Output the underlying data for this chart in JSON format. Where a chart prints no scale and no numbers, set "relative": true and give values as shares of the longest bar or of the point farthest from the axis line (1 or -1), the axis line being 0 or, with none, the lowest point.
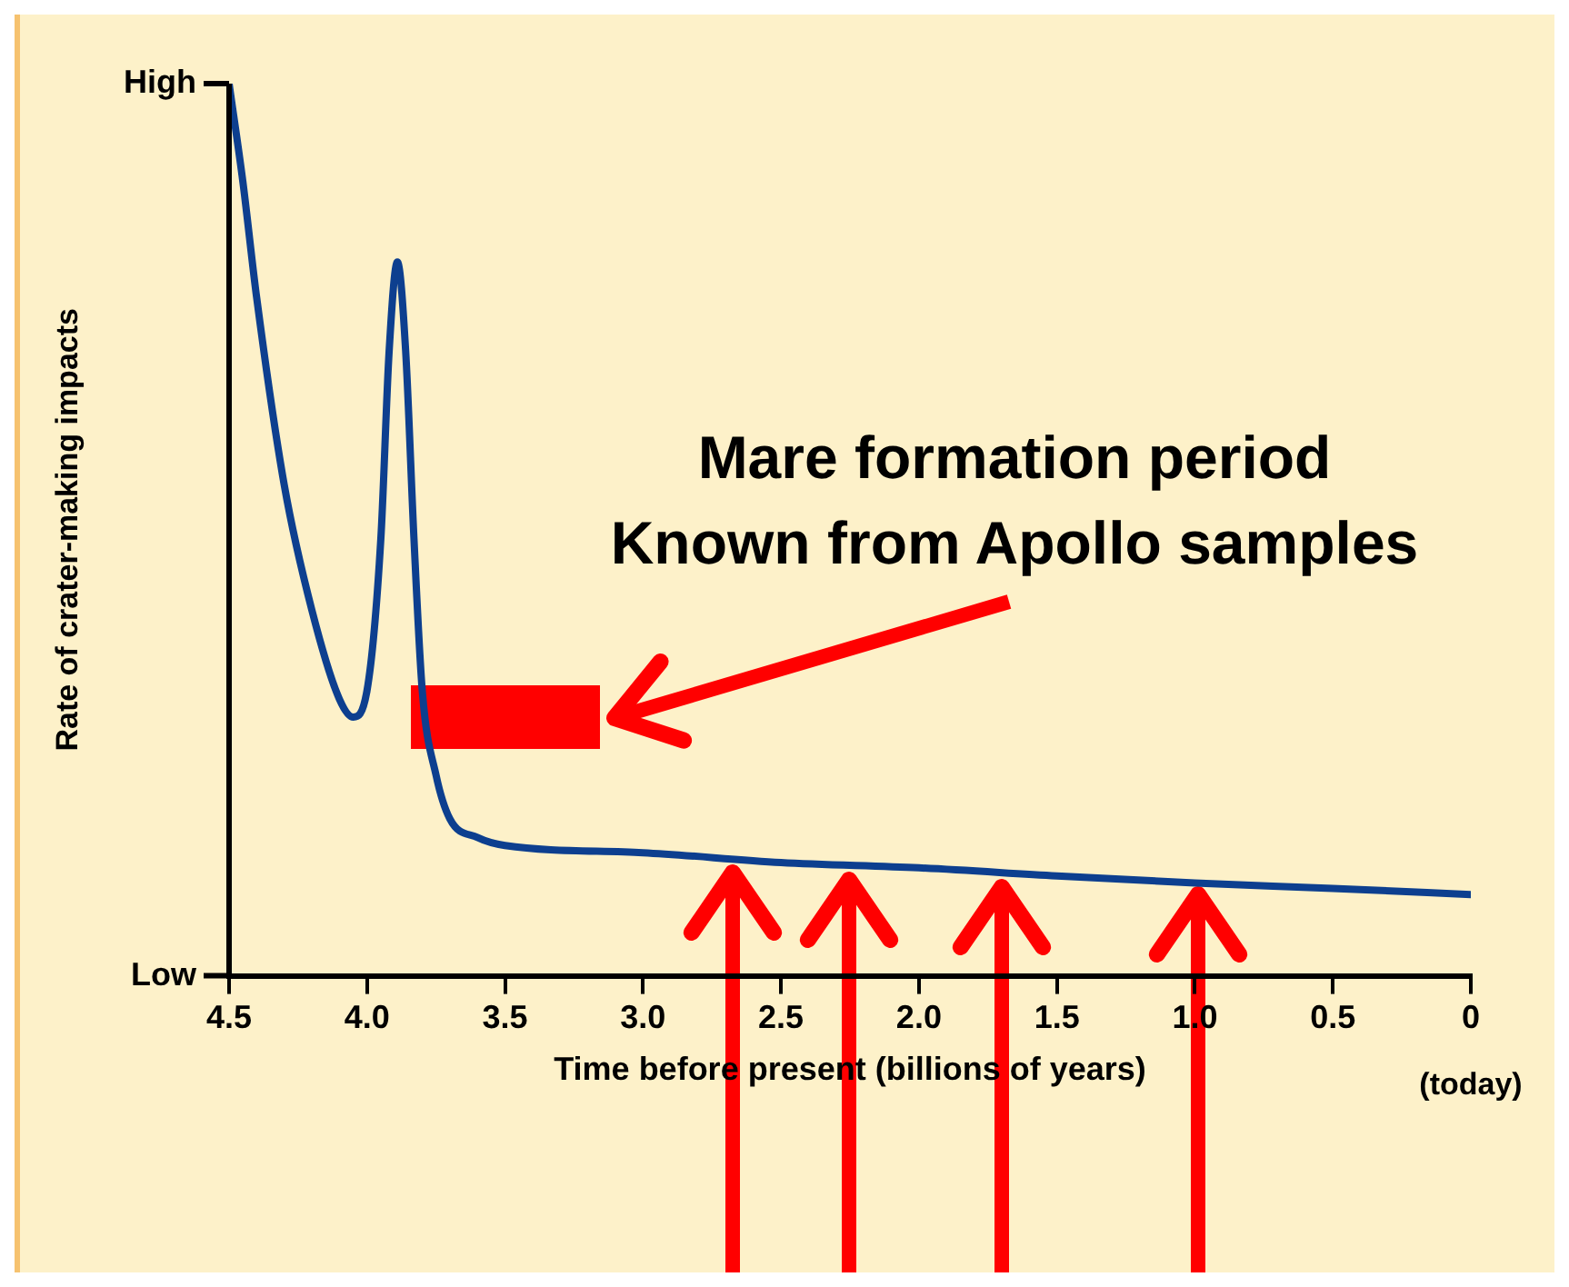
{
  "chart_data": {
    "type": "line",
    "xlabel": "Time before present (billions of years)",
    "ylabel": "Rate of crater-making impacts",
    "x": [
      4.5,
      4.45,
      4.4,
      4.3,
      4.2,
      4.1,
      4.05,
      4.0,
      3.95,
      3.92,
      3.89,
      3.86,
      3.83,
      3.8,
      3.75,
      3.7,
      3.6,
      3.5,
      3.0,
      2.5,
      2.0,
      1.5,
      1.0,
      0.5,
      0
    ],
    "series": [
      {
        "color": "#0d3f8f",
        "values": [
          1.0,
          0.89,
          0.76,
          0.55,
          0.41,
          0.31,
          0.29,
          0.32,
          0.49,
          0.7,
          0.8,
          0.7,
          0.49,
          0.32,
          0.225,
          0.176,
          0.155,
          0.146,
          0.138,
          0.127,
          0.121,
          0.112,
          0.104,
          0.098,
          0.091
        ]
      }
    ],
    "xlim": [
      4.5,
      0
    ],
    "xticks": [
      {
        "value": 4.5,
        "label": "4.5"
      },
      {
        "value": 4,
        "label": "4.0"
      },
      {
        "value": 3.5,
        "label": "3.5"
      },
      {
        "value": 3,
        "label": "3.0"
      },
      {
        "value": 2.5,
        "label": "2.5"
      },
      {
        "value": 2,
        "label": "2.0"
      },
      {
        "value": 1.5,
        "label": "1.5"
      },
      {
        "value": 1,
        "label": "1.0"
      },
      {
        "value": 0.5,
        "label": "0.5"
      },
      0
    ],
    "relative": true,
    "annotations": [
      "Mare formation period",
      "Known from Apollo samples",
      "(today)",
      "High",
      "Low"
    ],
    "grid": false,
    "legend": false,
    "marker": "none",
    "line_style": "solid"
  }
}
